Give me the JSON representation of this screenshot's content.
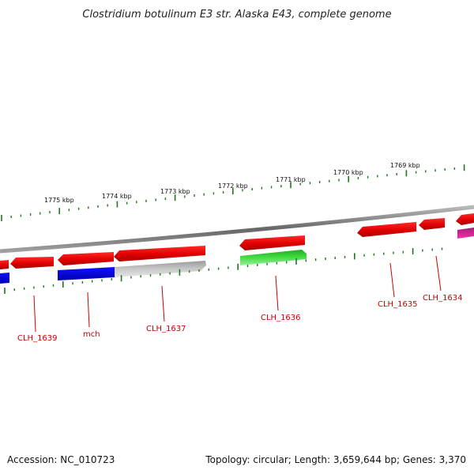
{
  "map": {
    "title": "Clostridium botulinum E3 str. Alaska E43, complete genome",
    "accession": "Accession: NC_010723",
    "summary": "Topology: circular; Length: 3,659,644 bp; Genes: 3,370"
  },
  "scale": {
    "kbp_labels": [
      "1775 kbp",
      "1774 kbp",
      "1773 kbp",
      "1772 kbp",
      "1771 kbp",
      "1770 kbp",
      "1769 kbp"
    ]
  },
  "genes": {
    "labels": [
      "CLH_1639",
      "mch",
      "CLH_1637",
      "CLH_1636",
      "CLH_1635",
      "CLH_1634"
    ]
  },
  "colors": {
    "forward_gene": "#e60000",
    "reverse_gene_blue": "#0000dd",
    "reverse_gene_green": "#33cc33",
    "pseudo_gene": "#bbbbbb",
    "magenta_gene": "#ff1a9c",
    "tick": "#1a7a1a",
    "label": "#cc0000",
    "backbone": "#888888"
  }
}
